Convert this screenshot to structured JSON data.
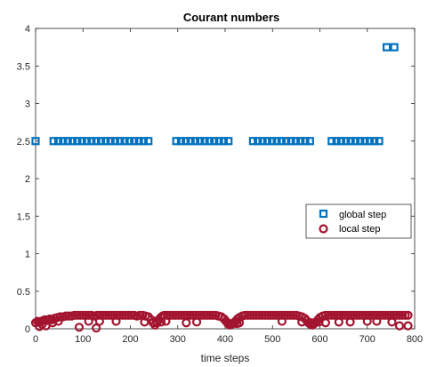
{
  "chart_data": {
    "type": "scatter",
    "title": "Courant numbers",
    "xlabel": "time steps",
    "ylabel": "",
    "xlim": [
      0,
      800
    ],
    "ylim": [
      0,
      4
    ],
    "xticks": [
      0,
      100,
      200,
      300,
      400,
      500,
      600,
      700,
      800
    ],
    "yticks": [
      0,
      0.5,
      1,
      1.5,
      2,
      2.5,
      3,
      3.5,
      4
    ],
    "xtick_labels": [
      "0",
      "100",
      "200",
      "300",
      "400",
      "500",
      "600",
      "700",
      "800"
    ],
    "ytick_labels": [
      "0",
      "0.5",
      "1",
      "1.5",
      "2",
      "2.5",
      "3",
      "3.5",
      "4"
    ],
    "grid": false,
    "legend_position": "right",
    "series": [
      {
        "name": "global step",
        "marker": "square",
        "color": "#0072BD",
        "x": [
          0,
          38,
          48,
          58,
          68,
          78,
          88,
          98,
          108,
          118,
          128,
          138,
          148,
          158,
          168,
          178,
          188,
          198,
          208,
          218,
          228,
          238,
          297,
          307,
          317,
          327,
          337,
          347,
          357,
          367,
          377,
          387,
          397,
          407,
          459,
          469,
          479,
          489,
          499,
          509,
          519,
          529,
          539,
          549,
          559,
          569,
          579,
          625,
          635,
          645,
          655,
          665,
          675,
          685,
          695,
          705,
          715,
          725,
          741,
          757
        ],
        "y": [
          2.5,
          2.5,
          2.5,
          2.5,
          2.5,
          2.5,
          2.5,
          2.5,
          2.5,
          2.5,
          2.5,
          2.5,
          2.5,
          2.5,
          2.5,
          2.5,
          2.5,
          2.5,
          2.5,
          2.5,
          2.5,
          2.5,
          2.5,
          2.5,
          2.5,
          2.5,
          2.5,
          2.5,
          2.5,
          2.5,
          2.5,
          2.5,
          2.5,
          2.5,
          2.5,
          2.5,
          2.5,
          2.5,
          2.5,
          2.5,
          2.5,
          2.5,
          2.5,
          2.5,
          2.5,
          2.5,
          2.5,
          2.5,
          2.5,
          2.5,
          2.5,
          2.5,
          2.5,
          2.5,
          2.5,
          2.5,
          2.5,
          2.5,
          3.75,
          3.75
        ]
      },
      {
        "name": "local step",
        "marker": "circle",
        "color": "#A2142F",
        "x": [
          0,
          4,
          8,
          12,
          16,
          20,
          25,
          30,
          35,
          40,
          46,
          52,
          58,
          64,
          70,
          76,
          82,
          88,
          94,
          100,
          106,
          112,
          118,
          124,
          130,
          136,
          142,
          148,
          154,
          160,
          166,
          172,
          178,
          184,
          190,
          196,
          202,
          208,
          214,
          220,
          226,
          232,
          238,
          244,
          248,
          252,
          256,
          260,
          264,
          268,
          272,
          278,
          284,
          290,
          296,
          302,
          308,
          314,
          320,
          326,
          332,
          338,
          344,
          350,
          356,
          362,
          368,
          374,
          380,
          386,
          392,
          398,
          402,
          406,
          410,
          414,
          418,
          422,
          426,
          430,
          436,
          442,
          448,
          454,
          460,
          466,
          472,
          478,
          484,
          490,
          496,
          502,
          508,
          514,
          520,
          526,
          532,
          538,
          544,
          550,
          556,
          562,
          568,
          572,
          576,
          580,
          584,
          588,
          592,
          596,
          600,
          606,
          612,
          618,
          624,
          630,
          636,
          642,
          648,
          654,
          660,
          666,
          672,
          678,
          684,
          690,
          696,
          702,
          708,
          714,
          720,
          726,
          732,
          738,
          744,
          750,
          756,
          762,
          768,
          774,
          780,
          786,
          8,
          14,
          22,
          36,
          48,
          92,
          112,
          128,
          135,
          170,
          230,
          255,
          265,
          275,
          318,
          340,
          405,
          425,
          430,
          520,
          562,
          582,
          598,
          612,
          640,
          664,
          700,
          720,
          752,
          768,
          786
        ],
        "y": [
          0.08,
          0.1,
          0.09,
          0.1,
          0.11,
          0.12,
          0.11,
          0.13,
          0.12,
          0.14,
          0.15,
          0.16,
          0.16,
          0.17,
          0.17,
          0.17,
          0.18,
          0.18,
          0.18,
          0.18,
          0.18,
          0.18,
          0.18,
          0.17,
          0.18,
          0.18,
          0.18,
          0.18,
          0.18,
          0.18,
          0.18,
          0.18,
          0.18,
          0.18,
          0.18,
          0.18,
          0.18,
          0.18,
          0.17,
          0.18,
          0.18,
          0.17,
          0.16,
          0.12,
          0.08,
          0.05,
          0.08,
          0.12,
          0.15,
          0.17,
          0.18,
          0.18,
          0.18,
          0.18,
          0.18,
          0.18,
          0.18,
          0.18,
          0.18,
          0.18,
          0.18,
          0.18,
          0.18,
          0.18,
          0.18,
          0.18,
          0.18,
          0.18,
          0.18,
          0.17,
          0.16,
          0.13,
          0.1,
          0.07,
          0.05,
          0.06,
          0.08,
          0.1,
          0.13,
          0.15,
          0.17,
          0.18,
          0.18,
          0.18,
          0.18,
          0.18,
          0.18,
          0.18,
          0.18,
          0.18,
          0.18,
          0.18,
          0.18,
          0.18,
          0.18,
          0.18,
          0.18,
          0.18,
          0.18,
          0.18,
          0.17,
          0.16,
          0.14,
          0.11,
          0.08,
          0.06,
          0.05,
          0.07,
          0.09,
          0.12,
          0.15,
          0.17,
          0.18,
          0.18,
          0.18,
          0.18,
          0.18,
          0.18,
          0.18,
          0.18,
          0.18,
          0.18,
          0.18,
          0.18,
          0.18,
          0.18,
          0.18,
          0.18,
          0.18,
          0.18,
          0.18,
          0.18,
          0.18,
          0.18,
          0.18,
          0.18,
          0.18,
          0.18,
          0.18,
          0.18,
          0.18,
          0.18,
          0.03,
          0.06,
          0.04,
          0.08,
          0.1,
          0.02,
          0.1,
          0.01,
          0.1,
          0.1,
          0.09,
          0.1,
          0.09,
          0.1,
          0.08,
          0.09,
          0.08,
          0.07,
          0.08,
          0.1,
          0.09,
          0.08,
          0.09,
          0.08,
          0.09,
          0.09,
          0.1,
          0.1,
          0.09,
          0.04,
          0.04
        ]
      }
    ]
  }
}
